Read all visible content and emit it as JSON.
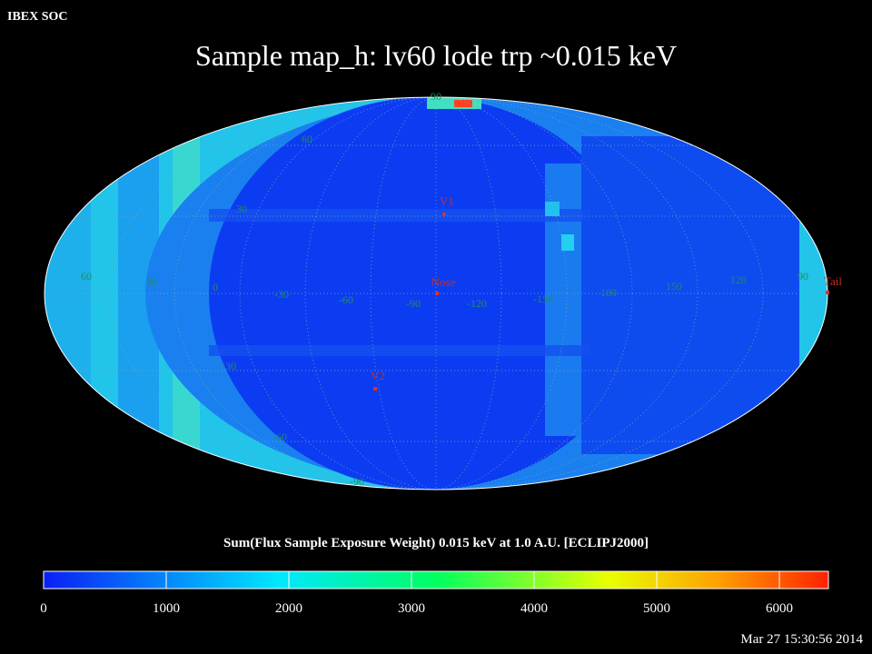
{
  "header": "IBEX SOC",
  "title": "Sample map_h: lv60 lode trp ~0.015 keV",
  "grid_labels": [
    "90",
    "60",
    "30",
    "60",
    "30",
    "0",
    "-30",
    "-60",
    "-90",
    "-120",
    "-150",
    "180",
    "150",
    "120",
    "90",
    "-30",
    "-60",
    "-90"
  ],
  "markers": [
    "V1",
    "Nose",
    "V2",
    "Tail"
  ],
  "colorbar": {
    "label": "Sum(Flux Sample Exposure Weight)  0.015 keV at 1.0 A.U. [ECLIPJ2000]",
    "range": [
      0,
      6400
    ],
    "ticks": [
      0,
      1000,
      2000,
      3000,
      4000,
      5000,
      6000
    ]
  },
  "footer": "Mar 27 15:30:56 2014"
}
